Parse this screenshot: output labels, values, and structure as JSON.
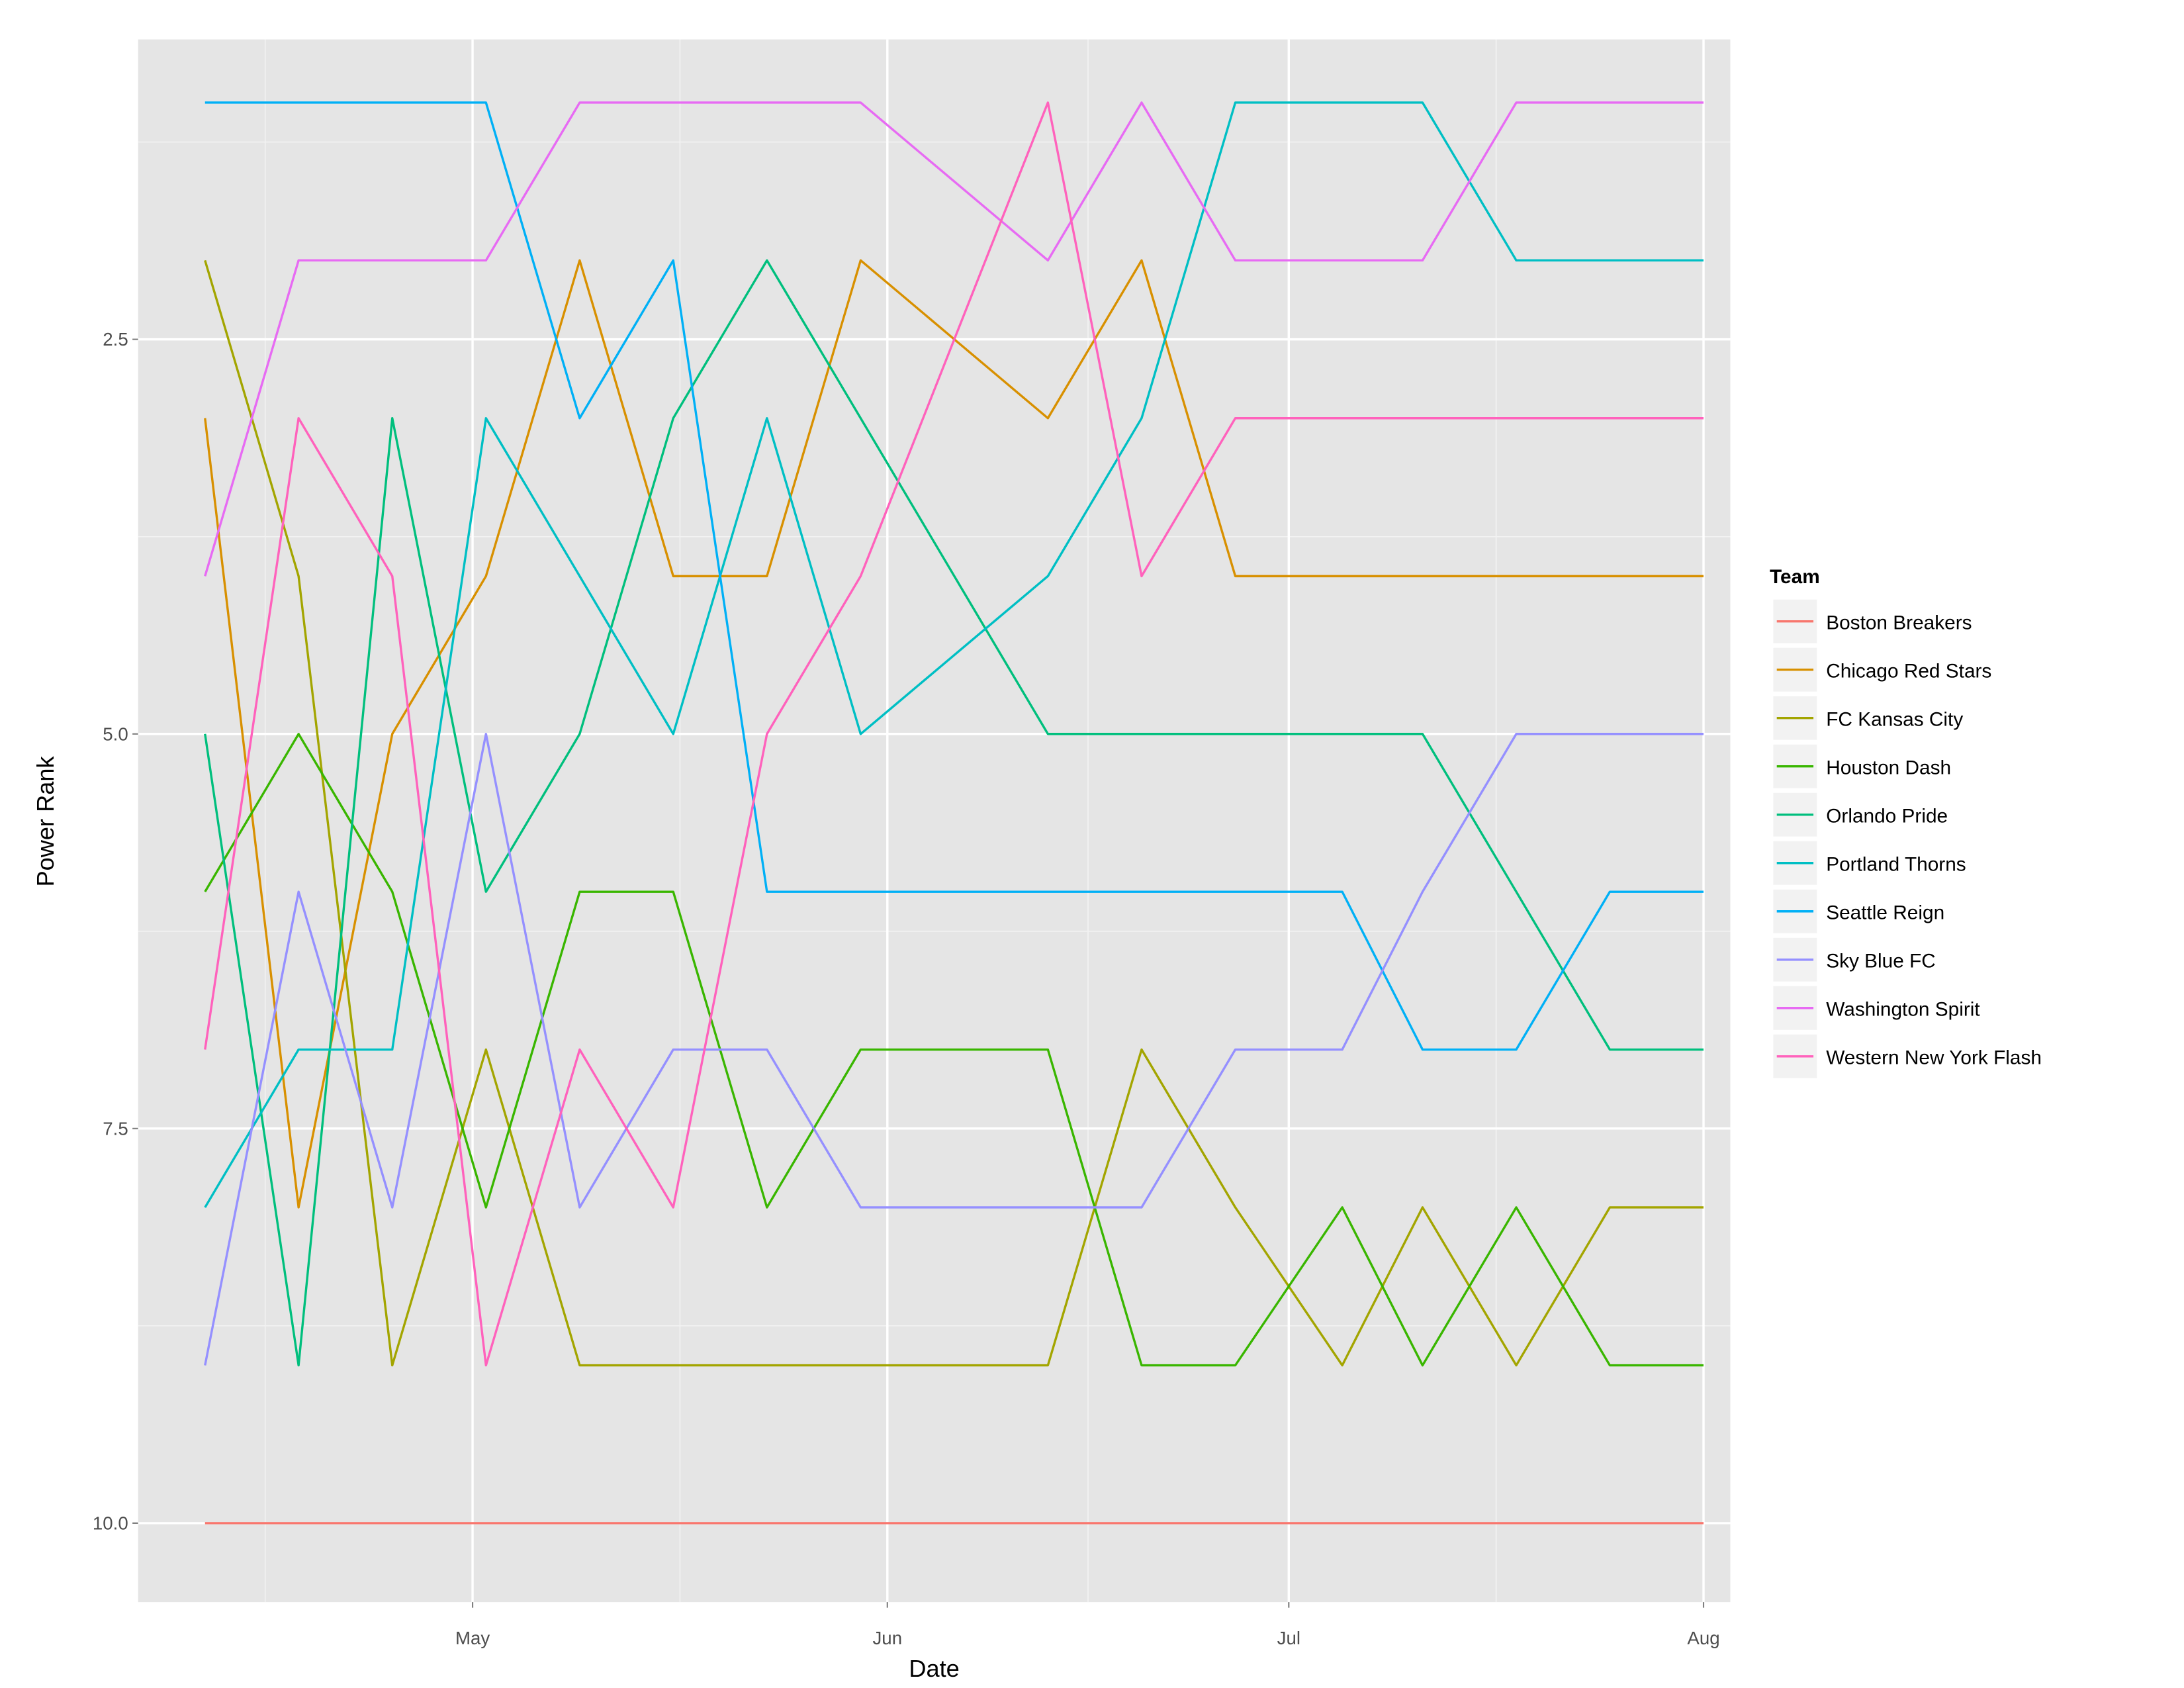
{
  "chart_data": {
    "type": "line",
    "title": "",
    "xlabel": "Date",
    "ylabel": "Power Rank",
    "y_reversed": true,
    "ylim": [
      10.5,
      0.6
    ],
    "y_ticks": [
      2.5,
      5.0,
      7.5,
      10.0
    ],
    "y_tick_labels": [
      "2.5",
      "5.0",
      "7.5",
      "10.0"
    ],
    "x_ticks": [
      "2016-05-01",
      "2016-06-01",
      "2016-07-01",
      "2016-08-01"
    ],
    "x_tick_labels": [
      "May",
      "Jun",
      "Jul",
      "Aug"
    ],
    "xlim": [
      "2016-04-06",
      "2016-08-03"
    ],
    "grid": true,
    "legend_title": "Team",
    "legend_position": "right",
    "x": [
      "2016-04-11",
      "2016-04-18",
      "2016-04-25",
      "2016-05-02",
      "2016-05-09",
      "2016-05-16",
      "2016-05-23",
      "2016-05-30",
      "2016-06-13",
      "2016-06-20",
      "2016-06-27",
      "2016-07-05",
      "2016-07-11",
      "2016-07-18",
      "2016-07-25",
      "2016-08-01"
    ],
    "series": [
      {
        "name": "Boston Breakers",
        "color": "#F8766D",
        "values": [
          10,
          10,
          10,
          10,
          10,
          10,
          10,
          10,
          10,
          10,
          10,
          10,
          10,
          10,
          10,
          10
        ]
      },
      {
        "name": "Chicago Red Stars",
        "color": "#D89000",
        "values": [
          3,
          8,
          5,
          4,
          2,
          4,
          4,
          2,
          3,
          2,
          4,
          4,
          4,
          4,
          4,
          4
        ]
      },
      {
        "name": "FC Kansas City",
        "color": "#A3A500",
        "values": [
          2,
          4,
          9,
          7,
          9,
          9,
          9,
          9,
          9,
          7,
          8,
          9,
          8,
          9,
          8,
          8
        ]
      },
      {
        "name": "Houston Dash",
        "color": "#39B600",
        "values": [
          6,
          5,
          6,
          8,
          6,
          6,
          8,
          7,
          7,
          9,
          9,
          8,
          9,
          8,
          9,
          9
        ]
      },
      {
        "name": "Orlando Pride",
        "color": "#00BF7D",
        "values": [
          5,
          9,
          3,
          6,
          5,
          3,
          2,
          3,
          5,
          5,
          5,
          5,
          5,
          6,
          7,
          7
        ]
      },
      {
        "name": "Portland Thorns",
        "color": "#00BFC4",
        "values": [
          8,
          7,
          7,
          3,
          4,
          5,
          3,
          5,
          4,
          3,
          1,
          1,
          1,
          2,
          2,
          2
        ]
      },
      {
        "name": "Seattle Reign",
        "color": "#00B0F6",
        "values": [
          1,
          1,
          1,
          1,
          3,
          2,
          6,
          6,
          6,
          6,
          6,
          6,
          7,
          7,
          6,
          6
        ]
      },
      {
        "name": "Sky Blue FC",
        "color": "#9590FF",
        "values": [
          9,
          6,
          8,
          5,
          8,
          7,
          7,
          8,
          8,
          8,
          7,
          7,
          6,
          5,
          5,
          5
        ]
      },
      {
        "name": "Washington Spirit",
        "color": "#E76BF3",
        "values": [
          4,
          2,
          2,
          2,
          1,
          1,
          1,
          1,
          2,
          1,
          2,
          2,
          2,
          1,
          1,
          1
        ]
      },
      {
        "name": "Western New York Flash",
        "color": "#FF62BC",
        "values": [
          7,
          3,
          4,
          9,
          7,
          8,
          5,
          4,
          1,
          4,
          3,
          3,
          3,
          3,
          3,
          3
        ]
      }
    ],
    "panel_background": "#E5E5E5",
    "grid_color": "#FFFFFF"
  }
}
